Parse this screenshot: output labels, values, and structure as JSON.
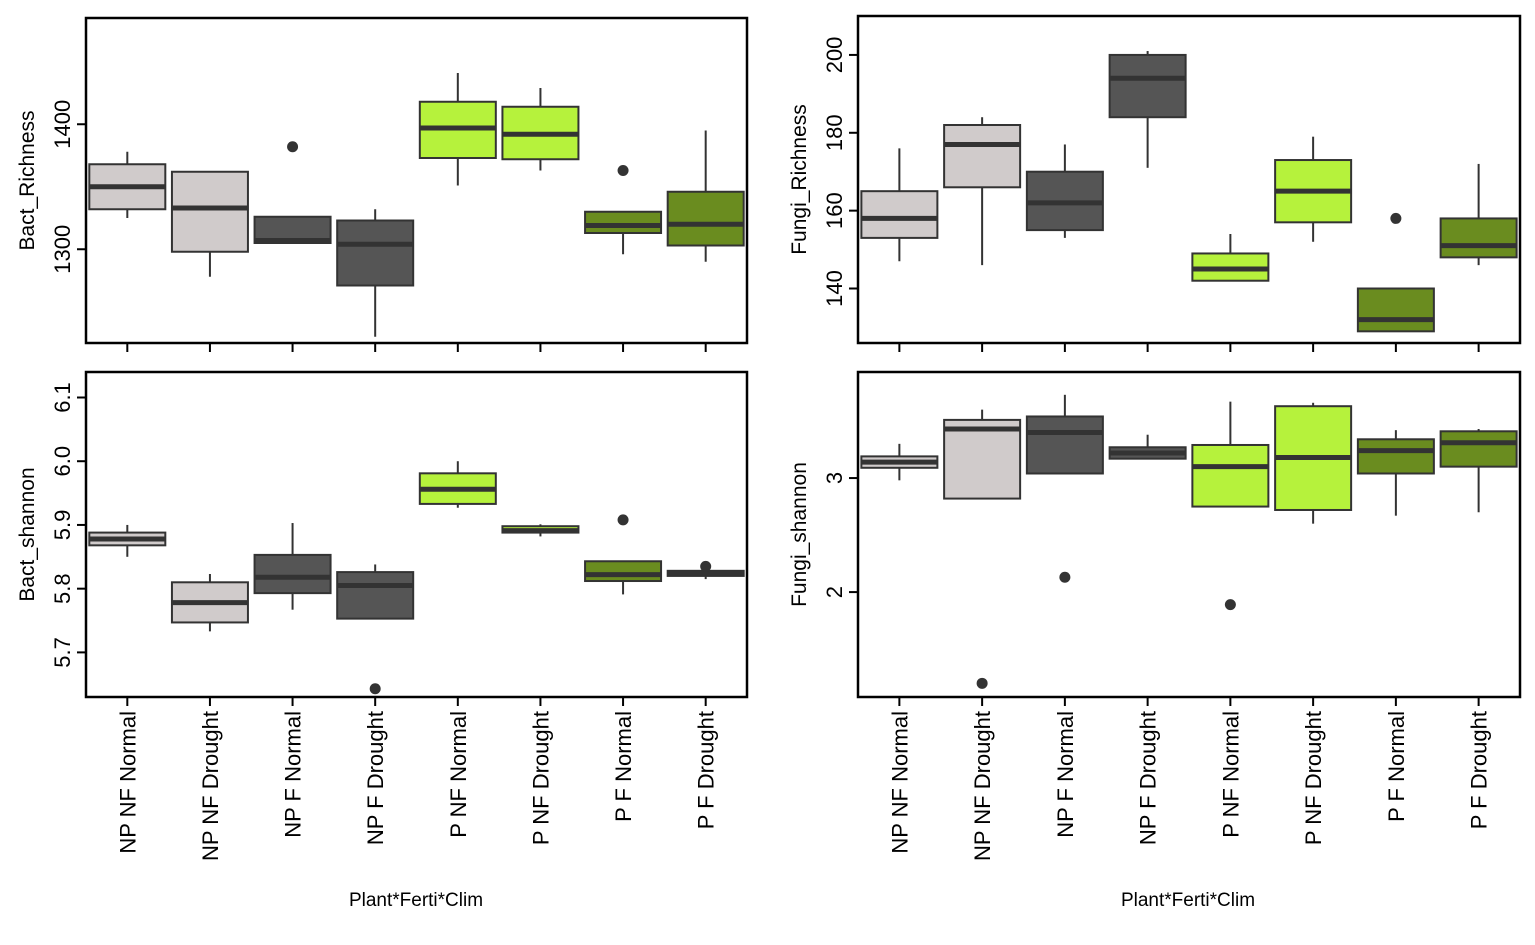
{
  "x_axis_title": "Plant*Ferti*Clim",
  "colors": {
    "NP_NF": "#d0cbcb",
    "NP_F": "#555555",
    "P_NF": "#b6f23c",
    "P_F": "#6a8c1f",
    "outline": "#333333"
  },
  "chart_data": [
    {
      "type": "box",
      "ylabel": "Bact_Richness",
      "yticks": [
        1300,
        1400
      ],
      "ylim": [
        1225,
        1485
      ],
      "x_tick_labels_shown": false,
      "categories": [
        "NP NF Normal",
        "NP NF Drought",
        "NP F Normal",
        "NP F Drought",
        "P NF Normal",
        "P NF Drought",
        "P F Normal",
        "P F Drought"
      ],
      "groups": [
        "NP_NF",
        "NP_NF",
        "NP_F",
        "NP_F",
        "P_NF",
        "P_NF",
        "P_F",
        "P_F"
      ],
      "boxes": [
        {
          "min": 1325,
          "q1": 1332,
          "median": 1350,
          "q3": 1368,
          "max": 1378,
          "outliers": []
        },
        {
          "min": 1278,
          "q1": 1298,
          "median": 1333,
          "q3": 1362,
          "max": 1362,
          "outliers": []
        },
        {
          "min": 1305,
          "q1": 1305,
          "median": 1307,
          "q3": 1326,
          "max": 1326,
          "outliers": [
            1382
          ]
        },
        {
          "min": 1230,
          "q1": 1271,
          "median": 1304,
          "q3": 1323,
          "max": 1332,
          "outliers": []
        },
        {
          "min": 1351,
          "q1": 1373,
          "median": 1397,
          "q3": 1418,
          "max": 1441,
          "outliers": []
        },
        {
          "min": 1363,
          "q1": 1372,
          "median": 1392,
          "q3": 1414,
          "max": 1429,
          "outliers": []
        },
        {
          "min": 1296,
          "q1": 1313,
          "median": 1319,
          "q3": 1330,
          "max": 1330,
          "outliers": [
            1363
          ]
        },
        {
          "min": 1290,
          "q1": 1303,
          "median": 1320,
          "q3": 1346,
          "max": 1395,
          "outliers": []
        }
      ]
    },
    {
      "type": "box",
      "ylabel": "Fungi_Richness",
      "yticks": [
        140,
        160,
        180,
        200
      ],
      "ylim": [
        126,
        210
      ],
      "x_tick_labels_shown": false,
      "categories": [
        "NP NF Normal",
        "NP NF Drought",
        "NP F Normal",
        "NP F Drought",
        "P NF Normal",
        "P NF Drought",
        "P F Normal",
        "P F Drought"
      ],
      "groups": [
        "NP_NF",
        "NP_NF",
        "NP_F",
        "NP_F",
        "P_NF",
        "P_NF",
        "P_F",
        "P_F"
      ],
      "boxes": [
        {
          "min": 147,
          "q1": 153,
          "median": 158,
          "q3": 165,
          "max": 176,
          "outliers": []
        },
        {
          "min": 146,
          "q1": 166,
          "median": 177,
          "q3": 182,
          "max": 184,
          "outliers": []
        },
        {
          "min": 153,
          "q1": 155,
          "median": 162,
          "q3": 170,
          "max": 177,
          "outliers": []
        },
        {
          "min": 171,
          "q1": 184,
          "median": 194,
          "q3": 200,
          "max": 201,
          "outliers": []
        },
        {
          "min": 142,
          "q1": 142,
          "median": 145,
          "q3": 149,
          "max": 154,
          "outliers": []
        },
        {
          "min": 152,
          "q1": 157,
          "median": 165,
          "q3": 173,
          "max": 179,
          "outliers": []
        },
        {
          "min": 129,
          "q1": 129,
          "median": 132,
          "q3": 140,
          "max": 140,
          "outliers": [
            158
          ]
        },
        {
          "min": 146,
          "q1": 148,
          "median": 151,
          "q3": 158,
          "max": 172,
          "outliers": []
        }
      ]
    },
    {
      "type": "box",
      "ylabel": "Bact_shannon",
      "yticks": [
        5.7,
        5.8,
        5.9,
        6.0,
        6.1
      ],
      "yticklabels": [
        "5.7",
        "5.8",
        "5.9",
        "6.0",
        "6.1"
      ],
      "ylim": [
        5.63,
        6.14
      ],
      "x_tick_labels_shown": true,
      "categories": [
        "NP NF Normal",
        "NP NF Drought",
        "NP F Normal",
        "NP F Drought",
        "P NF Normal",
        "P NF Drought",
        "P F Normal",
        "P F Drought"
      ],
      "groups": [
        "NP_NF",
        "NP_NF",
        "NP_F",
        "NP_F",
        "P_NF",
        "P_NF",
        "P_F",
        "P_F"
      ],
      "boxes": [
        {
          "min": 5.85,
          "q1": 5.868,
          "median": 5.878,
          "q3": 5.888,
          "max": 5.9,
          "outliers": []
        },
        {
          "min": 5.733,
          "q1": 5.747,
          "median": 5.778,
          "q3": 5.81,
          "max": 5.823,
          "outliers": []
        },
        {
          "min": 5.767,
          "q1": 5.793,
          "median": 5.818,
          "q3": 5.853,
          "max": 5.903,
          "outliers": []
        },
        {
          "min": 5.753,
          "q1": 5.753,
          "median": 5.805,
          "q3": 5.826,
          "max": 5.838,
          "outliers": [
            5.643
          ]
        },
        {
          "min": 5.927,
          "q1": 5.933,
          "median": 5.956,
          "q3": 5.981,
          "max": 6.0,
          "outliers": []
        },
        {
          "min": 5.882,
          "q1": 5.888,
          "median": 5.891,
          "q3": 5.898,
          "max": 5.901,
          "outliers": []
        },
        {
          "min": 5.791,
          "q1": 5.812,
          "median": 5.822,
          "q3": 5.843,
          "max": 5.843,
          "outliers": [
            5.908
          ]
        },
        {
          "min": 5.815,
          "q1": 5.82,
          "median": 5.824,
          "q3": 5.828,
          "max": 5.835,
          "outliers": [
            5.835
          ]
        }
      ]
    },
    {
      "type": "box",
      "ylabel": "Fungi_shannon",
      "yticks": [
        2,
        3
      ],
      "ylim": [
        1.08,
        3.93
      ],
      "x_tick_labels_shown": true,
      "categories": [
        "NP NF Normal",
        "NP NF Drought",
        "NP F Normal",
        "NP F Drought",
        "P NF Normal",
        "P NF Drought",
        "P F Normal",
        "P F Drought"
      ],
      "groups": [
        "NP_NF",
        "NP_NF",
        "NP_F",
        "NP_F",
        "P_NF",
        "P_NF",
        "P_F",
        "P_F"
      ],
      "boxes": [
        {
          "min": 2.98,
          "q1": 3.09,
          "median": 3.14,
          "q3": 3.19,
          "max": 3.3,
          "outliers": []
        },
        {
          "min": 2.82,
          "q1": 2.82,
          "median": 3.43,
          "q3": 3.51,
          "max": 3.6,
          "outliers": [
            1.2
          ]
        },
        {
          "min": 3.04,
          "q1": 3.04,
          "median": 3.4,
          "q3": 3.54,
          "max": 3.73,
          "outliers": [
            2.13
          ]
        },
        {
          "min": 3.17,
          "q1": 3.17,
          "median": 3.22,
          "q3": 3.27,
          "max": 3.38,
          "outliers": []
        },
        {
          "min": 2.75,
          "q1": 2.75,
          "median": 3.1,
          "q3": 3.29,
          "max": 3.67,
          "outliers": [
            1.89
          ]
        },
        {
          "min": 2.6,
          "q1": 2.72,
          "median": 3.18,
          "q3": 3.63,
          "max": 3.66,
          "outliers": []
        },
        {
          "min": 2.67,
          "q1": 3.04,
          "median": 3.24,
          "q3": 3.34,
          "max": 3.42,
          "outliers": []
        },
        {
          "min": 2.7,
          "q1": 3.1,
          "median": 3.31,
          "q3": 3.41,
          "max": 3.43,
          "outliers": []
        }
      ]
    }
  ]
}
